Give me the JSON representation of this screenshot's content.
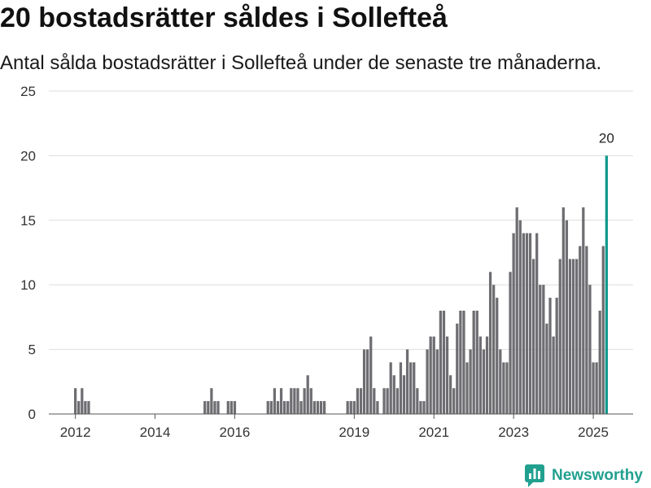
{
  "chart_data": {
    "type": "bar",
    "title": "20 bostadsrätter såldes i Sollefteå",
    "subtitle": "Antal sålda bostadsrätter i Sollefteå under de senaste tre månaderna.",
    "xlim": [
      "2011-05",
      "2026-01"
    ],
    "ylim": [
      0,
      25
    ],
    "yticks": [
      0,
      5,
      10,
      15,
      20,
      25
    ],
    "xticks": [
      "2012",
      "2014",
      "2016",
      "2019",
      "2021",
      "2023",
      "2025"
    ],
    "grid": "horizontal",
    "x": [
      "2012-01",
      "2012-02",
      "2012-03",
      "2012-04",
      "2012-05",
      "2015-04",
      "2015-05",
      "2015-06",
      "2015-07",
      "2015-08",
      "2015-11",
      "2015-12",
      "2016-01",
      "2016-11",
      "2016-12",
      "2017-01",
      "2017-02",
      "2017-03",
      "2017-04",
      "2017-05",
      "2017-06",
      "2017-07",
      "2017-08",
      "2017-09",
      "2017-10",
      "2017-11",
      "2017-12",
      "2018-01",
      "2018-02",
      "2018-03",
      "2018-04",
      "2018-11",
      "2018-12",
      "2019-01",
      "2019-02",
      "2019-03",
      "2019-04",
      "2019-05",
      "2019-06",
      "2019-07",
      "2019-08",
      "2019-10",
      "2019-11",
      "2019-12",
      "2020-01",
      "2020-02",
      "2020-03",
      "2020-04",
      "2020-05",
      "2020-06",
      "2020-07",
      "2020-08",
      "2020-09",
      "2020-10",
      "2020-11",
      "2020-12",
      "2021-01",
      "2021-02",
      "2021-03",
      "2021-04",
      "2021-05",
      "2021-06",
      "2021-07",
      "2021-08",
      "2021-09",
      "2021-10",
      "2021-11",
      "2021-12",
      "2022-01",
      "2022-02",
      "2022-03",
      "2022-04",
      "2022-05",
      "2022-06",
      "2022-07",
      "2022-08",
      "2022-09",
      "2022-10",
      "2022-11",
      "2022-12",
      "2023-01",
      "2023-02",
      "2023-03",
      "2023-04",
      "2023-05",
      "2023-06",
      "2023-07",
      "2023-08",
      "2023-09",
      "2023-10",
      "2023-11",
      "2023-12",
      "2024-01",
      "2024-02",
      "2024-03",
      "2024-04",
      "2024-05",
      "2024-06",
      "2024-07",
      "2024-08",
      "2024-09",
      "2024-10",
      "2024-11",
      "2024-12",
      "2025-01",
      "2025-02",
      "2025-03",
      "2025-04",
      "2025-05"
    ],
    "values": [
      2,
      1,
      2,
      1,
      1,
      1,
      1,
      2,
      1,
      1,
      1,
      1,
      1,
      1,
      1,
      2,
      1,
      2,
      1,
      1,
      2,
      2,
      2,
      1,
      2,
      3,
      2,
      1,
      1,
      1,
      1,
      1,
      1,
      1,
      2,
      2,
      5,
      5,
      6,
      2,
      1,
      2,
      2,
      4,
      3,
      2,
      4,
      3,
      5,
      4,
      4,
      2,
      1,
      1,
      5,
      6,
      6,
      5,
      8,
      8,
      6,
      3,
      2,
      7,
      8,
      8,
      4,
      5,
      8,
      8,
      6,
      5,
      6,
      11,
      10,
      9,
      5,
      4,
      4,
      11,
      14,
      16,
      15,
      14,
      14,
      14,
      12,
      14,
      10,
      10,
      7,
      9,
      6,
      9,
      12,
      16,
      15,
      12,
      12,
      12,
      13,
      16,
      13,
      10,
      4,
      4,
      8,
      13,
      20
    ],
    "highlight": [
      "2025-05"
    ],
    "data_labels": [
      {
        "x": "2025-05",
        "text": "20"
      }
    ],
    "colors": {
      "bar": "#6e6e72",
      "highlight": "#12998d",
      "grid": "#dddddd",
      "axis": "#555555",
      "tick_text": "#333333",
      "label_text": "#222222"
    }
  },
  "brand": {
    "name": "Newsworthy",
    "icon": "newsworthy-bar-chart-icon",
    "color": "#21a08f"
  }
}
